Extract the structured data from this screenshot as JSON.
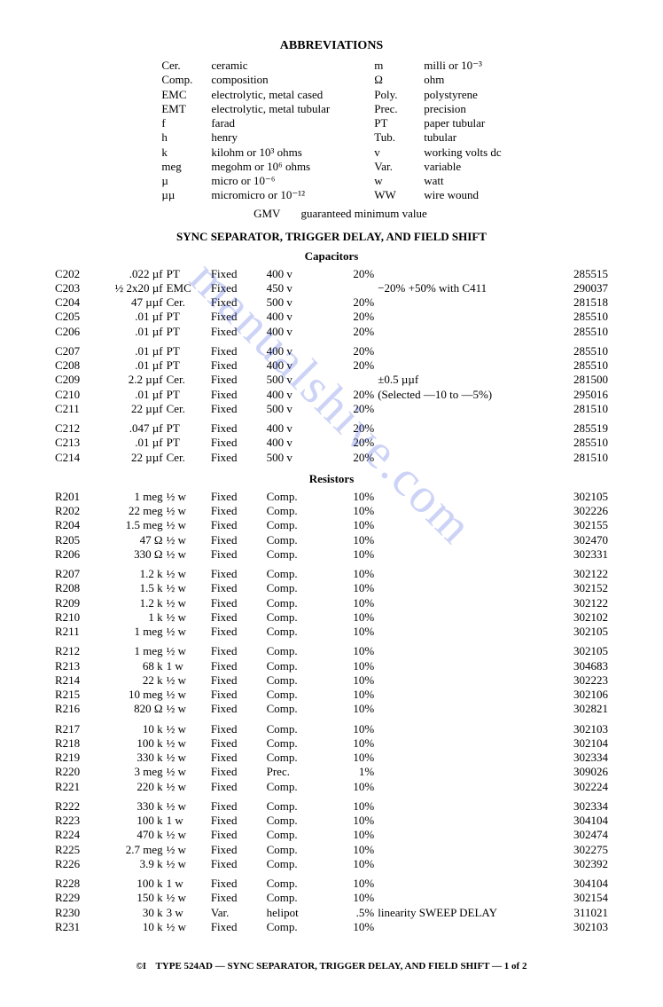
{
  "watermark": "manualshive.com",
  "headings": {
    "abbrev": "ABBREVIATIONS",
    "section": "SYNC SEPARATOR, TRIGGER DELAY, AND FIELD SHIFT",
    "caps": "Capacitors",
    "res": "Resistors"
  },
  "abbrev_left": [
    {
      "ab": "Cer.",
      "def": "ceramic"
    },
    {
      "ab": "Comp.",
      "def": "composition"
    },
    {
      "ab": "EMC",
      "def": "electrolytic, metal cased"
    },
    {
      "ab": "EMT",
      "def": "electrolytic, metal tubular"
    },
    {
      "ab": "f",
      "def": "farad"
    },
    {
      "ab": "h",
      "def": "henry"
    },
    {
      "ab": "k",
      "def": "kilohm or 10³ ohms"
    },
    {
      "ab": "meg",
      "def": "megohm or 10⁶ ohms"
    },
    {
      "ab": "µ",
      "def": "micro or 10⁻⁶"
    },
    {
      "ab": "µµ",
      "def": "micromicro or 10⁻¹²"
    }
  ],
  "abbrev_right": [
    {
      "ab": "m",
      "def": "milli or 10⁻³"
    },
    {
      "ab": "Ω",
      "def": "ohm"
    },
    {
      "ab": "Poly.",
      "def": "polystyrene"
    },
    {
      "ab": "Prec.",
      "def": "precision"
    },
    {
      "ab": "PT",
      "def": "paper tubular"
    },
    {
      "ab": "Tub.",
      "def": "tubular"
    },
    {
      "ab": "v",
      "def": "working volts dc"
    },
    {
      "ab": "Var.",
      "def": "variable"
    },
    {
      "ab": "w",
      "def": "watt"
    },
    {
      "ab": "WW",
      "def": "wire wound"
    }
  ],
  "gmv": {
    "ab": "GMV",
    "def": "guaranteed minimum value"
  },
  "capacitors": [
    [
      {
        "ref": "C202",
        "val": ".022 µf",
        "kind": "PT",
        "fix": "Fixed",
        "rate": "400 v",
        "tol": "20%",
        "note": "",
        "pn": "285515"
      },
      {
        "ref": "C203",
        "val": "½ 2x20 µf",
        "kind": "EMC",
        "fix": "Fixed",
        "rate": "450 v",
        "tol": "",
        "note": "−20% +50% with C411",
        "pn": "290037"
      },
      {
        "ref": "C204",
        "val": "47 µµf",
        "kind": "Cer.",
        "fix": "Fixed",
        "rate": "500 v",
        "tol": "20%",
        "note": "",
        "pn": "281518"
      },
      {
        "ref": "C205",
        "val": ".01 µf",
        "kind": "PT",
        "fix": "Fixed",
        "rate": "400 v",
        "tol": "20%",
        "note": "",
        "pn": "285510"
      },
      {
        "ref": "C206",
        "val": ".01 µf",
        "kind": "PT",
        "fix": "Fixed",
        "rate": "400 v",
        "tol": "20%",
        "note": "",
        "pn": "285510"
      }
    ],
    [
      {
        "ref": "C207",
        "val": ".01 µf",
        "kind": "PT",
        "fix": "Fixed",
        "rate": "400 v",
        "tol": "20%",
        "note": "",
        "pn": "285510"
      },
      {
        "ref": "C208",
        "val": ".01 µf",
        "kind": "PT",
        "fix": "Fixed",
        "rate": "400 v",
        "tol": "20%",
        "note": "",
        "pn": "285510"
      },
      {
        "ref": "C209",
        "val": "2.2 µµf",
        "kind": "Cer.",
        "fix": "Fixed",
        "rate": "500 v",
        "tol": "",
        "note": "±0.5 µµf",
        "pn": "281500"
      },
      {
        "ref": "C210",
        "val": ".01 µf",
        "kind": "PT",
        "fix": "Fixed",
        "rate": "400 v",
        "tol": "20%",
        "note": "(Selected —10 to —5%)",
        "pn": "295016"
      },
      {
        "ref": "C211",
        "val": "22 µµf",
        "kind": "Cer.",
        "fix": "Fixed",
        "rate": "500 v",
        "tol": "20%",
        "note": "",
        "pn": "281510"
      }
    ],
    [
      {
        "ref": "C212",
        "val": ".047 µf",
        "kind": "PT",
        "fix": "Fixed",
        "rate": "400 v",
        "tol": "20%",
        "note": "",
        "pn": "285519"
      },
      {
        "ref": "C213",
        "val": ".01 µf",
        "kind": "PT",
        "fix": "Fixed",
        "rate": "400 v",
        "tol": "20%",
        "note": "",
        "pn": "285510"
      },
      {
        "ref": "C214",
        "val": "22 µµf",
        "kind": "Cer.",
        "fix": "Fixed",
        "rate": "500 v",
        "tol": "20%",
        "note": "",
        "pn": "281510"
      }
    ]
  ],
  "resistors": [
    [
      {
        "ref": "R201",
        "val": "1 meg",
        "kind": "½ w",
        "fix": "Fixed",
        "rate": "Comp.",
        "tol": "10%",
        "note": "",
        "pn": "302105"
      },
      {
        "ref": "R202",
        "val": "22 meg",
        "kind": "½ w",
        "fix": "Fixed",
        "rate": "Comp.",
        "tol": "10%",
        "note": "",
        "pn": "302226"
      },
      {
        "ref": "R204",
        "val": "1.5 meg",
        "kind": "½ w",
        "fix": "Fixed",
        "rate": "Comp.",
        "tol": "10%",
        "note": "",
        "pn": "302155"
      },
      {
        "ref": "R205",
        "val": "47 Ω",
        "kind": "½ w",
        "fix": "Fixed",
        "rate": "Comp.",
        "tol": "10%",
        "note": "",
        "pn": "302470"
      },
      {
        "ref": "R206",
        "val": "330 Ω",
        "kind": "½ w",
        "fix": "Fixed",
        "rate": "Comp.",
        "tol": "10%",
        "note": "",
        "pn": "302331"
      }
    ],
    [
      {
        "ref": "R207",
        "val": "1.2 k",
        "kind": "½ w",
        "fix": "Fixed",
        "rate": "Comp.",
        "tol": "10%",
        "note": "",
        "pn": "302122"
      },
      {
        "ref": "R208",
        "val": "1.5 k",
        "kind": "½ w",
        "fix": "Fixed",
        "rate": "Comp.",
        "tol": "10%",
        "note": "",
        "pn": "302152"
      },
      {
        "ref": "R209",
        "val": "1.2 k",
        "kind": "½ w",
        "fix": "Fixed",
        "rate": "Comp.",
        "tol": "10%",
        "note": "",
        "pn": "302122"
      },
      {
        "ref": "R210",
        "val": "1 k",
        "kind": "½ w",
        "fix": "Fixed",
        "rate": "Comp.",
        "tol": "10%",
        "note": "",
        "pn": "302102"
      },
      {
        "ref": "R211",
        "val": "1 meg",
        "kind": "½ w",
        "fix": "Fixed",
        "rate": "Comp.",
        "tol": "10%",
        "note": "",
        "pn": "302105"
      }
    ],
    [
      {
        "ref": "R212",
        "val": "1 meg",
        "kind": "½ w",
        "fix": "Fixed",
        "rate": "Comp.",
        "tol": "10%",
        "note": "",
        "pn": "302105"
      },
      {
        "ref": "R213",
        "val": "68 k",
        "kind": "1 w",
        "fix": "Fixed",
        "rate": "Comp.",
        "tol": "10%",
        "note": "",
        "pn": "304683"
      },
      {
        "ref": "R214",
        "val": "22 k",
        "kind": "½ w",
        "fix": "Fixed",
        "rate": "Comp.",
        "tol": "10%",
        "note": "",
        "pn": "302223"
      },
      {
        "ref": "R215",
        "val": "10 meg",
        "kind": "½ w",
        "fix": "Fixed",
        "rate": "Comp.",
        "tol": "10%",
        "note": "",
        "pn": "302106"
      },
      {
        "ref": "R216",
        "val": "820 Ω",
        "kind": "½ w",
        "fix": "Fixed",
        "rate": "Comp.",
        "tol": "10%",
        "note": "",
        "pn": "302821"
      }
    ],
    [
      {
        "ref": "R217",
        "val": "10 k",
        "kind": "½ w",
        "fix": "Fixed",
        "rate": "Comp.",
        "tol": "10%",
        "note": "",
        "pn": "302103"
      },
      {
        "ref": "R218",
        "val": "100 k",
        "kind": "½ w",
        "fix": "Fixed",
        "rate": "Comp.",
        "tol": "10%",
        "note": "",
        "pn": "302104"
      },
      {
        "ref": "R219",
        "val": "330 k",
        "kind": "½ w",
        "fix": "Fixed",
        "rate": "Comp.",
        "tol": "10%",
        "note": "",
        "pn": "302334"
      },
      {
        "ref": "R220",
        "val": "3 meg",
        "kind": "½ w",
        "fix": "Fixed",
        "rate": "Prec.",
        "tol": "1%",
        "note": "",
        "pn": "309026"
      },
      {
        "ref": "R221",
        "val": "220 k",
        "kind": "½ w",
        "fix": "Fixed",
        "rate": "Comp.",
        "tol": "10%",
        "note": "",
        "pn": "302224"
      }
    ],
    [
      {
        "ref": "R222",
        "val": "330 k",
        "kind": "½ w",
        "fix": "Fixed",
        "rate": "Comp.",
        "tol": "10%",
        "note": "",
        "pn": "302334"
      },
      {
        "ref": "R223",
        "val": "100 k",
        "kind": "1 w",
        "fix": "Fixed",
        "rate": "Comp.",
        "tol": "10%",
        "note": "",
        "pn": "304104"
      },
      {
        "ref": "R224",
        "val": "470 k",
        "kind": "½ w",
        "fix": "Fixed",
        "rate": "Comp.",
        "tol": "10%",
        "note": "",
        "pn": "302474"
      },
      {
        "ref": "R225",
        "val": "2.7 meg",
        "kind": "½ w",
        "fix": "Fixed",
        "rate": "Comp.",
        "tol": "10%",
        "note": "",
        "pn": "302275"
      },
      {
        "ref": "R226",
        "val": "3.9 k",
        "kind": "½ w",
        "fix": "Fixed",
        "rate": "Comp.",
        "tol": "10%",
        "note": "",
        "pn": "302392"
      }
    ],
    [
      {
        "ref": "R228",
        "val": "100 k",
        "kind": "1 w",
        "fix": "Fixed",
        "rate": "Comp.",
        "tol": "10%",
        "note": "",
        "pn": "304104"
      },
      {
        "ref": "R229",
        "val": "150 k",
        "kind": "½ w",
        "fix": "Fixed",
        "rate": "Comp.",
        "tol": "10%",
        "note": "",
        "pn": "302154"
      },
      {
        "ref": "R230",
        "val": "30 k",
        "kind": "3 w",
        "fix": "Var.",
        "rate": "helipot",
        "tol": ".5%",
        "note": "linearity SWEEP DELAY",
        "pn": "311021"
      },
      {
        "ref": "R231",
        "val": "10 k",
        "kind": "½ w",
        "fix": "Fixed",
        "rate": "Comp.",
        "tol": "10%",
        "note": "",
        "pn": "302103"
      }
    ]
  ],
  "footer": {
    "mark": "©I",
    "text": "TYPE 524AD — SYNC SEPARATOR, TRIGGER DELAY, AND FIELD SHIFT — 1 of 2"
  }
}
